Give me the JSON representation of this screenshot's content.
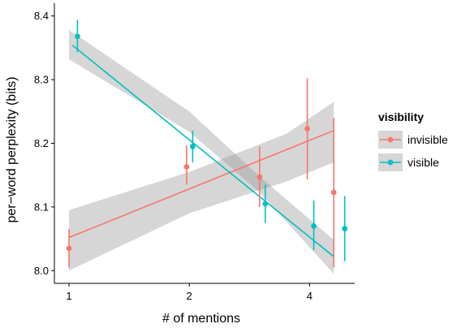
{
  "chart_data": {
    "type": "scatter",
    "xlabel": "# of mentions",
    "ylabel": "per−word perplexity (bits)",
    "x_scale": "log2",
    "xlim": [
      1,
      5.0
    ],
    "ylim": [
      7.98,
      8.42
    ],
    "x_ticks": [
      1,
      2,
      4
    ],
    "x_tick_labels": [
      "1",
      "2",
      "4"
    ],
    "y_ticks": [
      8.0,
      8.1,
      8.2,
      8.3,
      8.4
    ],
    "y_tick_labels": [
      "8.0",
      "8.1",
      "8.2",
      "8.3",
      "8.4"
    ],
    "grid": false,
    "legend": {
      "title": "visibility",
      "position": "right",
      "entries": [
        "invisible",
        "visible"
      ]
    },
    "series": [
      {
        "name": "invisible",
        "color": "#F8766D",
        "points": [
          {
            "x": 1.0,
            "y": 8.035,
            "ymin": 8.005,
            "ymax": 8.065
          },
          {
            "x": 1.97,
            "y": 8.163,
            "ymin": 8.135,
            "ymax": 8.197
          },
          {
            "x": 3.0,
            "y": 8.147,
            "ymin": 8.1,
            "ymax": 8.195
          },
          {
            "x": 3.95,
            "y": 8.223,
            "ymin": 8.143,
            "ymax": 8.302
          },
          {
            "x": 4.6,
            "y": 8.123,
            "ymin": 8.005,
            "ymax": 8.24
          }
        ],
        "fit": {
          "x": [
            1.0,
            4.6
          ],
          "y": [
            8.052,
            8.22
          ]
        },
        "band": {
          "x": [
            1.0,
            2.0,
            3.5,
            4.6
          ],
          "lower": [
            8.0,
            8.09,
            8.14,
            8.17
          ],
          "upper": [
            8.095,
            8.155,
            8.215,
            8.265
          ]
        }
      },
      {
        "name": "visible",
        "color": "#00BFC4",
        "points": [
          {
            "x": 1.05,
            "y": 8.368,
            "ymin": 8.343,
            "ymax": 8.394
          },
          {
            "x": 2.04,
            "y": 8.195,
            "ymin": 8.17,
            "ymax": 8.22
          },
          {
            "x": 3.1,
            "y": 8.105,
            "ymin": 8.075,
            "ymax": 8.135
          },
          {
            "x": 4.1,
            "y": 8.07,
            "ymin": 8.032,
            "ymax": 8.11
          },
          {
            "x": 4.9,
            "y": 8.066,
            "ymin": 8.015,
            "ymax": 8.117
          }
        ],
        "fit": {
          "x": [
            1.02,
            4.6
          ],
          "y": [
            8.354,
            8.022
          ]
        },
        "band": {
          "x": [
            1.0,
            2.0,
            3.0,
            4.6
          ],
          "lower": [
            8.332,
            8.218,
            8.123,
            7.995
          ],
          "upper": [
            8.378,
            8.25,
            8.148,
            8.048
          ]
        }
      }
    ]
  }
}
